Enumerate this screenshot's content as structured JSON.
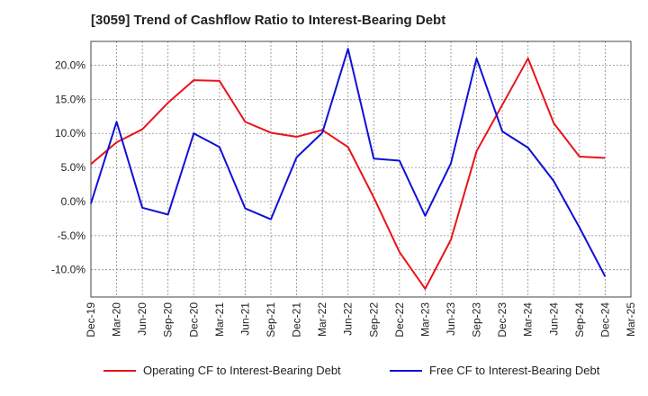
{
  "chart_data": {
    "type": "line",
    "title": "[3059]  Trend of Cashflow Ratio to Interest-Bearing Debt",
    "xlabel": "",
    "ylabel": "",
    "categories": [
      "Dec-19",
      "Mar-20",
      "Jun-20",
      "Sep-20",
      "Dec-20",
      "Mar-21",
      "Jun-21",
      "Sep-21",
      "Dec-21",
      "Mar-22",
      "Jun-22",
      "Sep-22",
      "Dec-22",
      "Mar-23",
      "Jun-23",
      "Sep-23",
      "Dec-23",
      "Mar-24",
      "Jun-24",
      "Sep-24",
      "Dec-24",
      "Mar-25"
    ],
    "ylim": [
      -14,
      23.5
    ],
    "yticks": [
      -10,
      -5,
      0,
      5,
      10,
      15,
      20
    ],
    "ytick_labels": [
      "-10.0%",
      "-5.0%",
      "0.0%",
      "5.0%",
      "10.0%",
      "15.0%",
      "20.0%"
    ],
    "grid": true,
    "legend_position": "bottom",
    "series": [
      {
        "name": "Operating CF to Interest-Bearing Debt",
        "color": "#e8141b",
        "values": [
          5.5,
          8.7,
          10.6,
          14.5,
          17.8,
          17.7,
          11.7,
          10.1,
          9.5,
          10.5,
          8.0,
          0.6,
          -7.4,
          -12.8,
          -5.6,
          7.4,
          14.2,
          21.0,
          11.5,
          6.6,
          6.4,
          null
        ]
      },
      {
        "name": "Free CF to Interest-Bearing Debt",
        "color": "#1010d8",
        "values": [
          -0.3,
          11.7,
          -0.9,
          -1.9,
          10.0,
          8.0,
          -1.0,
          -2.6,
          6.5,
          10.1,
          22.4,
          6.3,
          6.0,
          -2.1,
          5.6,
          21.0,
          10.3,
          7.9,
          3.0,
          -3.8,
          -11.0,
          null
        ]
      }
    ]
  }
}
